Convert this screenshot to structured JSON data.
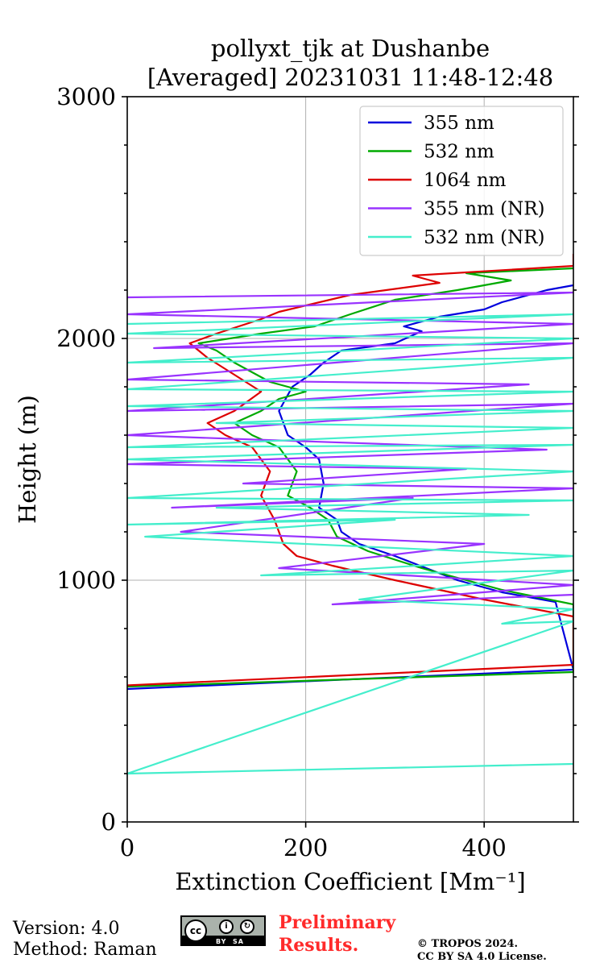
{
  "title": [
    "pollyxt_tjk at Dushanbe",
    "[Averaged] 20231031 11:48-12:48"
  ],
  "footer": {
    "version": "Version: 4.0",
    "method": "Method: Raman",
    "preliminary_line1": "Preliminary",
    "preliminary_line2": "Results.",
    "copyright_line1": "© TROPOS 2024.",
    "copyright_line2": "CC BY SA 4.0 License.",
    "license_badge": "cc BY SA"
  },
  "chart_data": {
    "type": "line",
    "title": "pollyxt_tjk at Dushanbe [Averaged] 20231031 11:48-12:48",
    "xlabel": "Extinction Coefficient [Mm⁻¹]",
    "ylabel": "Height (m)",
    "xlim": [
      0,
      500
    ],
    "ylim": [
      0,
      3000
    ],
    "xticks": [
      0,
      200,
      400
    ],
    "yticks": [
      0,
      1000,
      2000,
      3000
    ],
    "grid": true,
    "legend_position": "top-right",
    "series": [
      {
        "name": "355 nm",
        "color": "#0000dd",
        "points": [
          [
            0,
            550
          ],
          [
            500,
            630
          ],
          [
            480,
            910
          ],
          [
            420,
            950
          ],
          [
            370,
            1000
          ],
          [
            300,
            1100
          ],
          [
            260,
            1150
          ],
          [
            240,
            1200
          ],
          [
            235,
            1250
          ],
          [
            215,
            1300
          ],
          [
            220,
            1400
          ],
          [
            215,
            1500
          ],
          [
            200,
            1550
          ],
          [
            180,
            1600
          ],
          [
            170,
            1700
          ],
          [
            185,
            1800
          ],
          [
            205,
            1850
          ],
          [
            220,
            1900
          ],
          [
            240,
            1950
          ],
          [
            300,
            1980
          ],
          [
            330,
            2030
          ],
          [
            310,
            2050
          ],
          [
            350,
            2090
          ],
          [
            400,
            2120
          ],
          [
            420,
            2150
          ],
          [
            470,
            2200
          ],
          [
            500,
            2220
          ]
        ]
      },
      {
        "name": "532 nm",
        "color": "#00aa00",
        "points": [
          [
            0,
            560
          ],
          [
            500,
            620
          ],
          [
            500,
            900
          ],
          [
            420,
            960
          ],
          [
            330,
            1050
          ],
          [
            270,
            1120
          ],
          [
            235,
            1180
          ],
          [
            225,
            1250
          ],
          [
            205,
            1300
          ],
          [
            180,
            1350
          ],
          [
            190,
            1450
          ],
          [
            170,
            1550
          ],
          [
            140,
            1600
          ],
          [
            120,
            1650
          ],
          [
            150,
            1700
          ],
          [
            170,
            1750
          ],
          [
            200,
            1780
          ],
          [
            160,
            1820
          ],
          [
            120,
            1900
          ],
          [
            100,
            1950
          ],
          [
            80,
            1980
          ],
          [
            150,
            2020
          ],
          [
            210,
            2050
          ],
          [
            250,
            2100
          ],
          [
            300,
            2160
          ],
          [
            370,
            2200
          ],
          [
            430,
            2240
          ],
          [
            380,
            2270
          ],
          [
            500,
            2290
          ]
        ]
      },
      {
        "name": "1064 nm",
        "color": "#dd0000",
        "points": [
          [
            0,
            565
          ],
          [
            500,
            650
          ],
          [
            500,
            850
          ],
          [
            400,
            920
          ],
          [
            300,
            1000
          ],
          [
            230,
            1060
          ],
          [
            190,
            1100
          ],
          [
            175,
            1150
          ],
          [
            165,
            1250
          ],
          [
            150,
            1350
          ],
          [
            160,
            1450
          ],
          [
            140,
            1550
          ],
          [
            110,
            1600
          ],
          [
            90,
            1650
          ],
          [
            120,
            1700
          ],
          [
            150,
            1780
          ],
          [
            120,
            1850
          ],
          [
            90,
            1920
          ],
          [
            70,
            1980
          ],
          [
            100,
            2020
          ],
          [
            150,
            2080
          ],
          [
            170,
            2110
          ],
          [
            250,
            2180
          ],
          [
            350,
            2230
          ],
          [
            320,
            2260
          ],
          [
            500,
            2300
          ],
          [
            500,
            2350
          ]
        ]
      },
      {
        "name": "355 nm (NR)",
        "color": "#9933ff",
        "points": [
          [
            0,
            2170
          ],
          [
            500,
            2190
          ],
          [
            0,
            2100
          ],
          [
            500,
            2060
          ],
          [
            30,
            1960
          ],
          [
            500,
            1980
          ],
          [
            0,
            1830
          ],
          [
            450,
            1810
          ],
          [
            0,
            1700
          ],
          [
            500,
            1730
          ],
          [
            0,
            1600
          ],
          [
            470,
            1540
          ],
          [
            0,
            1480
          ],
          [
            380,
            1460
          ],
          [
            130,
            1400
          ],
          [
            500,
            1380
          ],
          [
            50,
            1300
          ],
          [
            320,
            1340
          ],
          [
            60,
            1200
          ],
          [
            400,
            1150
          ],
          [
            170,
            1050
          ],
          [
            500,
            980
          ],
          [
            230,
            900
          ],
          [
            500,
            940
          ]
        ]
      },
      {
        "name": "532 nm (NR)",
        "color": "#44eecc",
        "points": [
          [
            0,
            2060
          ],
          [
            500,
            2100
          ],
          [
            0,
            2020
          ],
          [
            500,
            2000
          ],
          [
            0,
            1900
          ],
          [
            500,
            1920
          ],
          [
            0,
            1790
          ],
          [
            500,
            1780
          ],
          [
            0,
            1720
          ],
          [
            500,
            1700
          ],
          [
            100,
            1650
          ],
          [
            500,
            1630
          ],
          [
            0,
            1550
          ],
          [
            500,
            1560
          ],
          [
            0,
            1500
          ],
          [
            500,
            1450
          ],
          [
            0,
            1340
          ],
          [
            500,
            1330
          ],
          [
            100,
            1300
          ],
          [
            450,
            1270
          ],
          [
            0,
            1230
          ],
          [
            300,
            1250
          ],
          [
            20,
            1180
          ],
          [
            500,
            1100
          ],
          [
            150,
            1020
          ],
          [
            500,
            1040
          ],
          [
            260,
            920
          ],
          [
            500,
            880
          ],
          [
            420,
            820
          ],
          [
            500,
            830
          ],
          [
            0,
            200
          ],
          [
            500,
            240
          ]
        ]
      }
    ]
  }
}
